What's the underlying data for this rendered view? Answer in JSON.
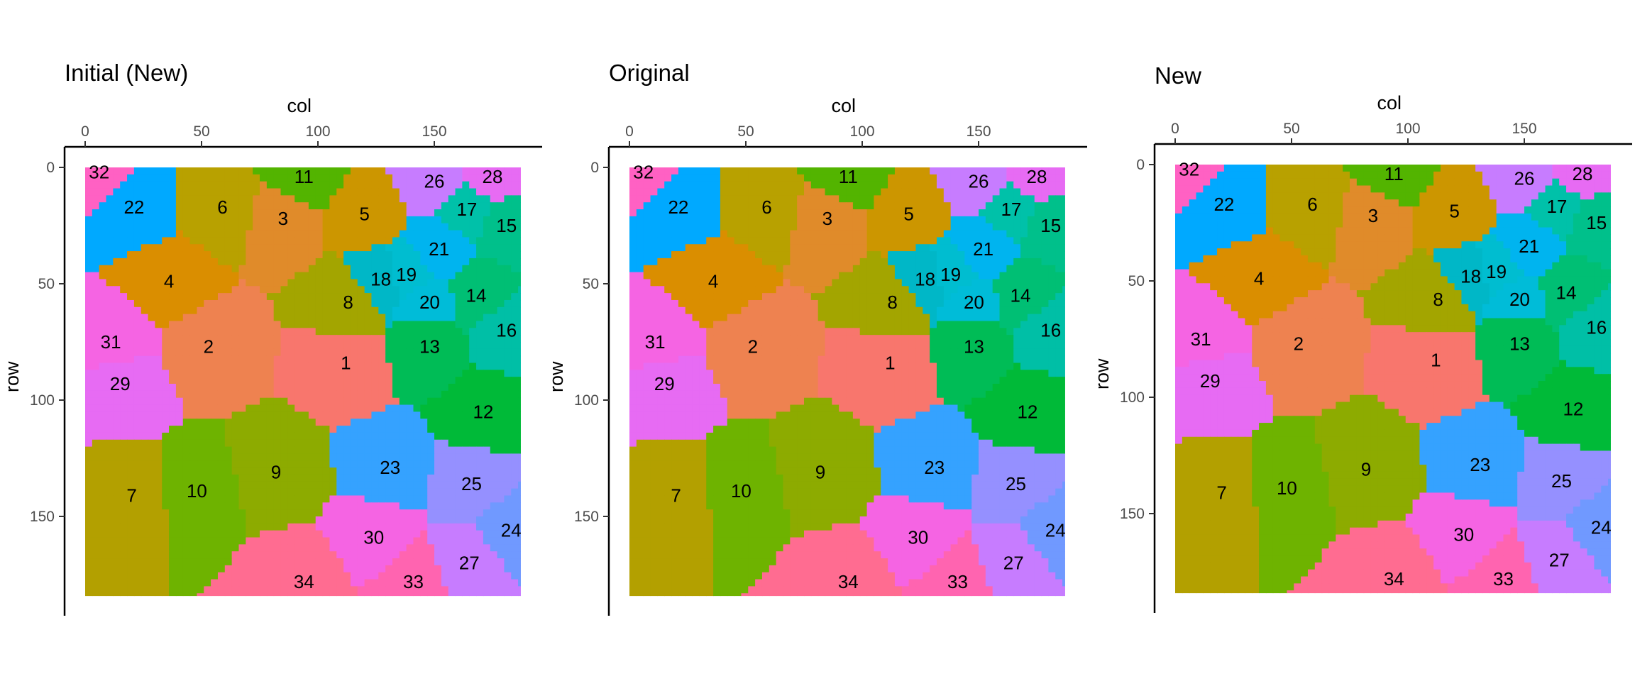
{
  "chart_data": [
    {
      "type": "segmentation-map",
      "title": "Initial (New)",
      "xlabel": "col",
      "ylabel": "row",
      "xlim": [
        0,
        187
      ],
      "ylim": [
        0,
        184
      ],
      "x_ticks": [
        0,
        50,
        100,
        150
      ],
      "y_ticks": [
        0,
        50,
        100,
        150
      ],
      "x_axis_position": "top",
      "y_axis_reversed": true,
      "regions": [
        {
          "id": "1",
          "label_x": 112,
          "label_y": 84,
          "color": "#F8766D"
        },
        {
          "id": "2",
          "label_x": 53,
          "label_y": 77,
          "color": "#EE8250"
        },
        {
          "id": "3",
          "label_x": 85,
          "label_y": 22,
          "color": "#E08B2A"
        },
        {
          "id": "4",
          "label_x": 36,
          "label_y": 49,
          "color": "#DA8E00"
        },
        {
          "id": "5",
          "label_x": 120,
          "label_y": 20,
          "color": "#CC9600"
        },
        {
          "id": "6",
          "label_x": 59,
          "label_y": 17,
          "color": "#B8A100"
        },
        {
          "id": "7",
          "label_x": 20,
          "label_y": 141,
          "color": "#B3A000"
        },
        {
          "id": "8",
          "label_x": 113,
          "label_y": 58,
          "color": "#A3A500"
        },
        {
          "id": "9",
          "label_x": 82,
          "label_y": 131,
          "color": "#8DAB00"
        },
        {
          "id": "10",
          "label_x": 48,
          "label_y": 139,
          "color": "#6EB300"
        },
        {
          "id": "11",
          "label_x": 94,
          "label_y": 4,
          "color": "#53B400"
        },
        {
          "id": "12",
          "label_x": 171,
          "label_y": 105,
          "color": "#00BA38"
        },
        {
          "id": "13",
          "label_x": 148,
          "label_y": 77,
          "color": "#00BC56"
        },
        {
          "id": "14",
          "label_x": 168,
          "label_y": 55,
          "color": "#00BF74"
        },
        {
          "id": "15",
          "label_x": 181,
          "label_y": 25,
          "color": "#00C08B"
        },
        {
          "id": "16",
          "label_x": 181,
          "label_y": 70,
          "color": "#00BFA6"
        },
        {
          "id": "17",
          "label_x": 164,
          "label_y": 18,
          "color": "#00C1A9"
        },
        {
          "id": "18",
          "label_x": 127,
          "label_y": 48,
          "color": "#00B7C7"
        },
        {
          "id": "19",
          "label_x": 138,
          "label_y": 46,
          "color": "#00BDD0"
        },
        {
          "id": "20",
          "label_x": 148,
          "label_y": 58,
          "color": "#00BCD8"
        },
        {
          "id": "21",
          "label_x": 152,
          "label_y": 35,
          "color": "#00B4EF"
        },
        {
          "id": "22",
          "label_x": 21,
          "label_y": 17,
          "color": "#00A9FF"
        },
        {
          "id": "23",
          "label_x": 131,
          "label_y": 129,
          "color": "#35A2FF"
        },
        {
          "id": "24",
          "label_x": 183,
          "label_y": 156,
          "color": "#7099FF"
        },
        {
          "id": "25",
          "label_x": 166,
          "label_y": 136,
          "color": "#9590FF"
        },
        {
          "id": "26",
          "label_x": 150,
          "label_y": 6,
          "color": "#C77CFF"
        },
        {
          "id": "27",
          "label_x": 165,
          "label_y": 170,
          "color": "#C77CFF"
        },
        {
          "id": "28",
          "label_x": 175,
          "label_y": 4,
          "color": "#E76BF3"
        },
        {
          "id": "29",
          "label_x": 15,
          "label_y": 93,
          "color": "#E76BF3"
        },
        {
          "id": "30",
          "label_x": 124,
          "label_y": 159,
          "color": "#F564E3"
        },
        {
          "id": "31",
          "label_x": 11,
          "label_y": 75,
          "color": "#F564E3"
        },
        {
          "id": "32",
          "label_x": 6,
          "label_y": 2,
          "color": "#FF61C3"
        },
        {
          "id": "33",
          "label_x": 141,
          "label_y": 178,
          "color": "#FF64B0"
        },
        {
          "id": "34",
          "label_x": 94,
          "label_y": 178,
          "color": "#FF6C91"
        }
      ]
    },
    {
      "type": "segmentation-map",
      "title": "Original",
      "xlabel": "col",
      "ylabel": "row",
      "xlim": [
        0,
        187
      ],
      "ylim": [
        0,
        184
      ],
      "x_ticks": [
        0,
        50,
        100,
        150
      ],
      "y_ticks": [
        0,
        50,
        100,
        150
      ],
      "x_axis_position": "top",
      "y_axis_reversed": true,
      "regions_same_as": "Initial (New)"
    },
    {
      "type": "segmentation-map",
      "title": "New",
      "xlabel": "col",
      "ylabel": "row",
      "xlim": [
        0,
        187
      ],
      "ylim": [
        0,
        184
      ],
      "x_ticks": [
        0,
        50,
        100,
        150
      ],
      "y_ticks": [
        0,
        50,
        100,
        150
      ],
      "x_axis_position": "top",
      "y_axis_reversed": true,
      "regions_same_as": "Initial (New)"
    }
  ]
}
